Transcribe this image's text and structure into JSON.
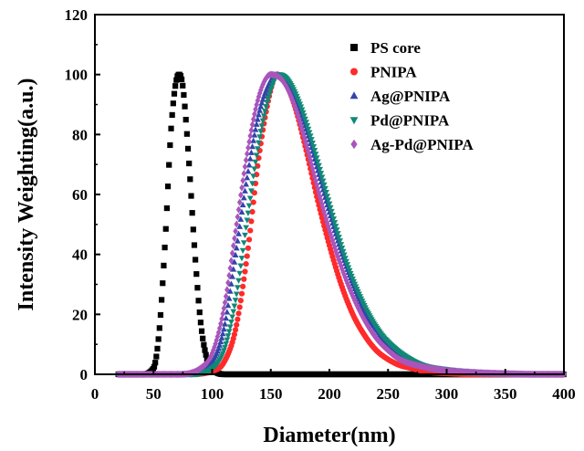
{
  "chart_data": {
    "type": "scatter",
    "title": "",
    "xlabel": "Diameter(nm)",
    "ylabel": "Intensity Weighting(a.u.)",
    "xlim": [
      0,
      400
    ],
    "ylim": [
      0,
      120
    ],
    "xticks": [
      "0",
      "50",
      "100",
      "150",
      "200",
      "250",
      "300",
      "350",
      "400"
    ],
    "yticks": [
      "0",
      "20",
      "40",
      "60",
      "80",
      "100",
      "120"
    ],
    "grid": false,
    "legend_position": "top-right",
    "series": [
      {
        "name": "PS core",
        "marker": "square",
        "color": "#000000",
        "x": [
          20,
          40,
          50,
          55,
          60,
          65,
          70,
          72,
          75,
          80,
          85,
          90,
          95,
          100,
          110,
          130,
          160,
          250,
          400
        ],
        "y": [
          0,
          0,
          2,
          15,
          45,
          82,
          99,
          100,
          96,
          72,
          42,
          18,
          6,
          2,
          0,
          0,
          0,
          0,
          0
        ]
      },
      {
        "name": "PNIPA",
        "marker": "circle",
        "color": "#ff2a2a",
        "x": [
          20,
          80,
          100,
          110,
          120,
          130,
          140,
          150,
          155,
          160,
          170,
          180,
          190,
          200,
          210,
          220,
          230,
          240,
          250,
          260,
          270,
          280,
          290,
          300,
          320,
          350,
          400
        ],
        "y": [
          0,
          0,
          1,
          4,
          15,
          40,
          73,
          95,
          100,
          99,
          90,
          75,
          58,
          43,
          30,
          20,
          13,
          8,
          5,
          3,
          2,
          1,
          0.5,
          0.3,
          0,
          0,
          0
        ]
      },
      {
        "name": "Ag@PNIPA",
        "marker": "triangle-up",
        "color": "#3344aa",
        "x": [
          20,
          70,
          90,
          100,
          110,
          120,
          130,
          140,
          150,
          155,
          160,
          170,
          180,
          190,
          200,
          210,
          220,
          230,
          240,
          250,
          260,
          280,
          300,
          320,
          350,
          380,
          400
        ],
        "y": [
          0,
          0,
          1,
          4,
          15,
          40,
          66,
          87,
          98,
          100,
          99,
          93,
          82,
          68,
          54,
          41,
          30,
          21,
          15,
          10,
          7,
          3,
          1.5,
          0.8,
          0.3,
          0,
          0
        ]
      },
      {
        "name": "Pd@PNIPA",
        "marker": "triangle-down",
        "color": "#118877",
        "x": [
          20,
          80,
          100,
          110,
          120,
          130,
          140,
          150,
          157,
          165,
          175,
          185,
          195,
          205,
          215,
          225,
          235,
          245,
          255,
          265,
          280,
          300,
          320,
          350,
          380,
          400
        ],
        "y": [
          0,
          0,
          2,
          8,
          25,
          52,
          78,
          95,
          100,
          98,
          90,
          78,
          64,
          50,
          37,
          27,
          19,
          13,
          9,
          6,
          3,
          1.5,
          0.8,
          0.2,
          0,
          0
        ]
      },
      {
        "name": "Ag-Pd@PNIPA",
        "marker": "diamond",
        "color": "#aa55bb",
        "x": [
          20,
          70,
          90,
          100,
          110,
          120,
          130,
          140,
          150,
          160,
          170,
          180,
          190,
          200,
          210,
          220,
          230,
          240,
          250,
          260,
          280,
          300,
          320,
          350,
          380,
          400
        ],
        "y": [
          0,
          0,
          2,
          7,
          22,
          48,
          74,
          93,
          100,
          98,
          90,
          77,
          62,
          48,
          36,
          26,
          18,
          12,
          8,
          5,
          2.5,
          1.2,
          0.6,
          0.2,
          0,
          0
        ]
      }
    ]
  }
}
